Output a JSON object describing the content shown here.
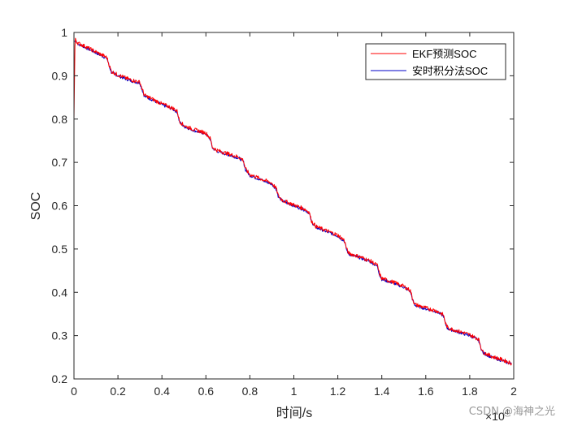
{
  "chart_data": {
    "type": "line",
    "title": "",
    "xlabel": "时间/s",
    "ylabel": "SOC",
    "x_exponent_label": "×10",
    "x_exponent_power": "4",
    "xlim": [
      0,
      2
    ],
    "ylim": [
      0.2,
      1
    ],
    "xticks": [
      "0",
      "0.2",
      "0.4",
      "0.6",
      "0.8",
      "1",
      "1.2",
      "1.4",
      "1.6",
      "1.8",
      "2"
    ],
    "yticks": [
      "0.2",
      "0.3",
      "0.4",
      "0.5",
      "0.6",
      "0.7",
      "0.8",
      "0.9",
      "1"
    ],
    "grid": false,
    "legend_position": "top-right",
    "series": [
      {
        "name": "EKF预测SOC",
        "color": "#ff0000",
        "x": [
          0,
          0.005,
          0.01,
          0.02,
          0.05,
          0.1,
          0.15,
          0.16,
          0.17,
          0.2,
          0.25,
          0.3,
          0.31,
          0.32,
          0.35,
          0.4,
          0.45,
          0.47,
          0.48,
          0.5,
          0.55,
          0.6,
          0.62,
          0.63,
          0.65,
          0.7,
          0.75,
          0.77,
          0.78,
          0.8,
          0.85,
          0.9,
          0.92,
          0.93,
          0.95,
          1.0,
          1.05,
          1.07,
          1.08,
          1.1,
          1.15,
          1.2,
          1.23,
          1.24,
          1.25,
          1.3,
          1.35,
          1.38,
          1.39,
          1.4,
          1.45,
          1.5,
          1.53,
          1.54,
          1.55,
          1.6,
          1.65,
          1.68,
          1.69,
          1.7,
          1.75,
          1.8,
          1.84,
          1.85,
          1.86,
          1.9,
          1.95,
          1.99
        ],
        "y": [
          0.8,
          0.99,
          0.98,
          0.975,
          0.968,
          0.955,
          0.942,
          0.925,
          0.91,
          0.902,
          0.892,
          0.885,
          0.87,
          0.855,
          0.848,
          0.835,
          0.825,
          0.818,
          0.795,
          0.785,
          0.775,
          0.768,
          0.755,
          0.735,
          0.728,
          0.72,
          0.712,
          0.705,
          0.685,
          0.672,
          0.662,
          0.652,
          0.64,
          0.622,
          0.612,
          0.602,
          0.592,
          0.585,
          0.565,
          0.552,
          0.542,
          0.532,
          0.52,
          0.5,
          0.49,
          0.482,
          0.472,
          0.462,
          0.442,
          0.432,
          0.424,
          0.414,
          0.404,
          0.385,
          0.372,
          0.364,
          0.357,
          0.348,
          0.328,
          0.318,
          0.31,
          0.302,
          0.292,
          0.275,
          0.262,
          0.252,
          0.244,
          0.236
        ]
      },
      {
        "name": "安时积分法SOC",
        "color": "#0000c8",
        "x": [
          0,
          0.01,
          0.02,
          0.05,
          0.1,
          0.15,
          0.16,
          0.17,
          0.2,
          0.25,
          0.3,
          0.31,
          0.32,
          0.35,
          0.4,
          0.45,
          0.47,
          0.48,
          0.5,
          0.55,
          0.6,
          0.62,
          0.63,
          0.65,
          0.7,
          0.75,
          0.77,
          0.78,
          0.8,
          0.85,
          0.9,
          0.92,
          0.93,
          0.95,
          1.0,
          1.05,
          1.07,
          1.08,
          1.1,
          1.15,
          1.2,
          1.23,
          1.24,
          1.25,
          1.3,
          1.35,
          1.38,
          1.39,
          1.4,
          1.45,
          1.5,
          1.53,
          1.54,
          1.55,
          1.6,
          1.65,
          1.68,
          1.69,
          1.7,
          1.75,
          1.8,
          1.84,
          1.85,
          1.86,
          1.9,
          1.95,
          1.99
        ],
        "y": [
          0.98,
          0.978,
          0.973,
          0.966,
          0.953,
          0.94,
          0.923,
          0.908,
          0.9,
          0.89,
          0.883,
          0.868,
          0.853,
          0.846,
          0.833,
          0.823,
          0.816,
          0.793,
          0.783,
          0.773,
          0.766,
          0.753,
          0.733,
          0.726,
          0.718,
          0.71,
          0.703,
          0.683,
          0.67,
          0.66,
          0.65,
          0.638,
          0.62,
          0.61,
          0.6,
          0.59,
          0.583,
          0.563,
          0.55,
          0.54,
          0.53,
          0.518,
          0.498,
          0.488,
          0.48,
          0.47,
          0.46,
          0.44,
          0.43,
          0.422,
          0.412,
          0.402,
          0.383,
          0.37,
          0.362,
          0.355,
          0.346,
          0.326,
          0.316,
          0.308,
          0.3,
          0.29,
          0.273,
          0.26,
          0.25,
          0.242,
          0.234
        ]
      }
    ]
  },
  "watermark": "CSDN @海神之光"
}
